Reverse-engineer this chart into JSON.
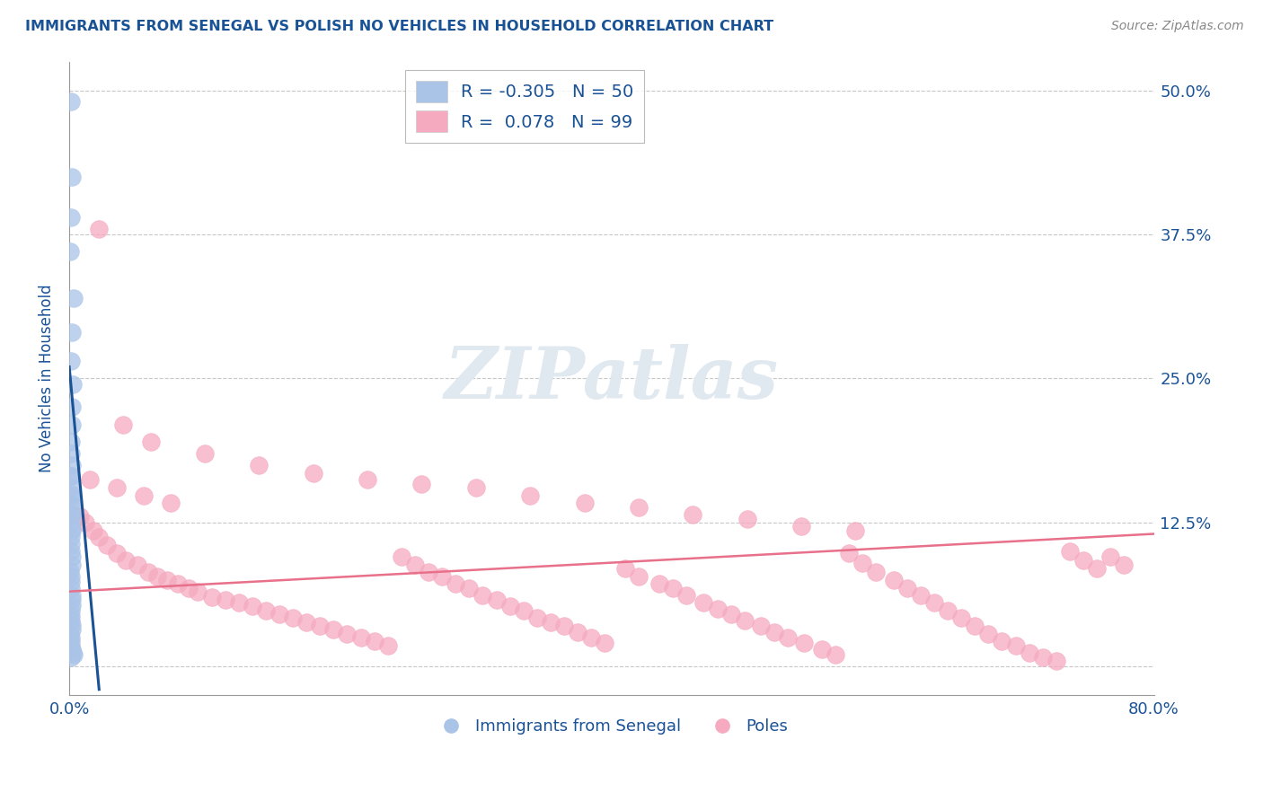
{
  "title": "IMMIGRANTS FROM SENEGAL VS POLISH NO VEHICLES IN HOUSEHOLD CORRELATION CHART",
  "source": "Source: ZipAtlas.com",
  "ylabel": "No Vehicles in Household",
  "legend1_label": "Immigrants from Senegal",
  "legend2_label": "Poles",
  "r1": -0.305,
  "n1": 50,
  "r2": 0.078,
  "n2": 99,
  "blue_color": "#aac4e8",
  "blue_edge_color": "#aac4e8",
  "pink_color": "#f5aabf",
  "pink_edge_color": "#f5aabf",
  "blue_line_color": "#1a5296",
  "pink_line_color": "#e8708a",
  "title_color": "#1a5296",
  "tick_label_color": "#1a5296",
  "watermark_color": "#e0e8f0",
  "watermark": "ZIPatlas",
  "xmin": 0.0,
  "xmax": 0.8,
  "ymin": -0.025,
  "ymax": 0.525,
  "ytick_vals": [
    0.0,
    0.125,
    0.25,
    0.375,
    0.5
  ],
  "ytick_labels_right": [
    "",
    "12.5%",
    "25.0%",
    "37.5%",
    "50.0%"
  ],
  "xtick_vals": [
    0.0,
    0.8
  ],
  "xtick_labels": [
    "0.0%",
    "80.0%"
  ],
  "blue_trend": [
    0.0,
    0.022,
    0.26,
    -0.02
  ],
  "pink_trend": [
    0.0,
    0.8,
    0.065,
    0.115
  ],
  "blue_x": [
    0.0015,
    0.002,
    0.001,
    0.0008,
    0.003,
    0.0018,
    0.0012,
    0.0025,
    0.0022,
    0.0016,
    0.001,
    0.0014,
    0.002,
    0.0015,
    0.0012,
    0.0018,
    0.0008,
    0.001,
    0.0015,
    0.002,
    0.0012,
    0.001,
    0.0015,
    0.0018,
    0.002,
    0.0008,
    0.001,
    0.0012,
    0.0015,
    0.0018,
    0.002,
    0.0022,
    0.001,
    0.0012,
    0.0015,
    0.0018,
    0.002,
    0.0008,
    0.001,
    0.0012,
    0.0015,
    0.0018,
    0.0025,
    0.003,
    0.0012,
    0.0015,
    0.0018,
    0.002,
    0.0022,
    0.0015
  ],
  "blue_y": [
    0.49,
    0.425,
    0.39,
    0.36,
    0.32,
    0.29,
    0.265,
    0.245,
    0.225,
    0.21,
    0.195,
    0.185,
    0.175,
    0.165,
    0.155,
    0.148,
    0.14,
    0.132,
    0.125,
    0.118,
    0.112,
    0.106,
    0.1,
    0.095,
    0.088,
    0.083,
    0.078,
    0.073,
    0.068,
    0.062,
    0.058,
    0.053,
    0.048,
    0.044,
    0.04,
    0.036,
    0.032,
    0.028,
    0.025,
    0.022,
    0.018,
    0.015,
    0.012,
    0.01,
    0.165,
    0.15,
    0.14,
    0.132,
    0.12,
    0.008
  ],
  "pink_x": [
    0.008,
    0.012,
    0.018,
    0.022,
    0.028,
    0.035,
    0.042,
    0.05,
    0.058,
    0.065,
    0.072,
    0.08,
    0.088,
    0.095,
    0.105,
    0.115,
    0.125,
    0.135,
    0.145,
    0.155,
    0.165,
    0.175,
    0.185,
    0.195,
    0.205,
    0.215,
    0.225,
    0.235,
    0.245,
    0.255,
    0.265,
    0.275,
    0.285,
    0.295,
    0.305,
    0.315,
    0.325,
    0.335,
    0.345,
    0.355,
    0.365,
    0.375,
    0.385,
    0.395,
    0.41,
    0.42,
    0.435,
    0.445,
    0.455,
    0.468,
    0.478,
    0.488,
    0.498,
    0.51,
    0.52,
    0.53,
    0.542,
    0.555,
    0.565,
    0.575,
    0.585,
    0.595,
    0.608,
    0.618,
    0.628,
    0.638,
    0.648,
    0.658,
    0.668,
    0.678,
    0.688,
    0.698,
    0.708,
    0.718,
    0.728,
    0.738,
    0.748,
    0.758,
    0.768,
    0.778,
    0.04,
    0.06,
    0.1,
    0.14,
    0.18,
    0.22,
    0.26,
    0.3,
    0.34,
    0.38,
    0.42,
    0.46,
    0.5,
    0.54,
    0.58,
    0.015,
    0.035,
    0.055,
    0.075,
    0.022
  ],
  "pink_y": [
    0.13,
    0.125,
    0.118,
    0.112,
    0.105,
    0.098,
    0.092,
    0.088,
    0.082,
    0.078,
    0.075,
    0.072,
    0.068,
    0.065,
    0.06,
    0.058,
    0.055,
    0.052,
    0.048,
    0.045,
    0.042,
    0.038,
    0.035,
    0.032,
    0.028,
    0.025,
    0.022,
    0.018,
    0.095,
    0.088,
    0.082,
    0.078,
    0.072,
    0.068,
    0.062,
    0.058,
    0.052,
    0.048,
    0.042,
    0.038,
    0.035,
    0.03,
    0.025,
    0.02,
    0.085,
    0.078,
    0.072,
    0.068,
    0.062,
    0.055,
    0.05,
    0.045,
    0.04,
    0.035,
    0.03,
    0.025,
    0.02,
    0.015,
    0.01,
    0.098,
    0.09,
    0.082,
    0.075,
    0.068,
    0.062,
    0.055,
    0.048,
    0.042,
    0.035,
    0.028,
    0.022,
    0.018,
    0.012,
    0.008,
    0.005,
    0.1,
    0.092,
    0.085,
    0.095,
    0.088,
    0.21,
    0.195,
    0.185,
    0.175,
    0.168,
    0.162,
    0.158,
    0.155,
    0.148,
    0.142,
    0.138,
    0.132,
    0.128,
    0.122,
    0.118,
    0.162,
    0.155,
    0.148,
    0.142,
    0.38
  ]
}
